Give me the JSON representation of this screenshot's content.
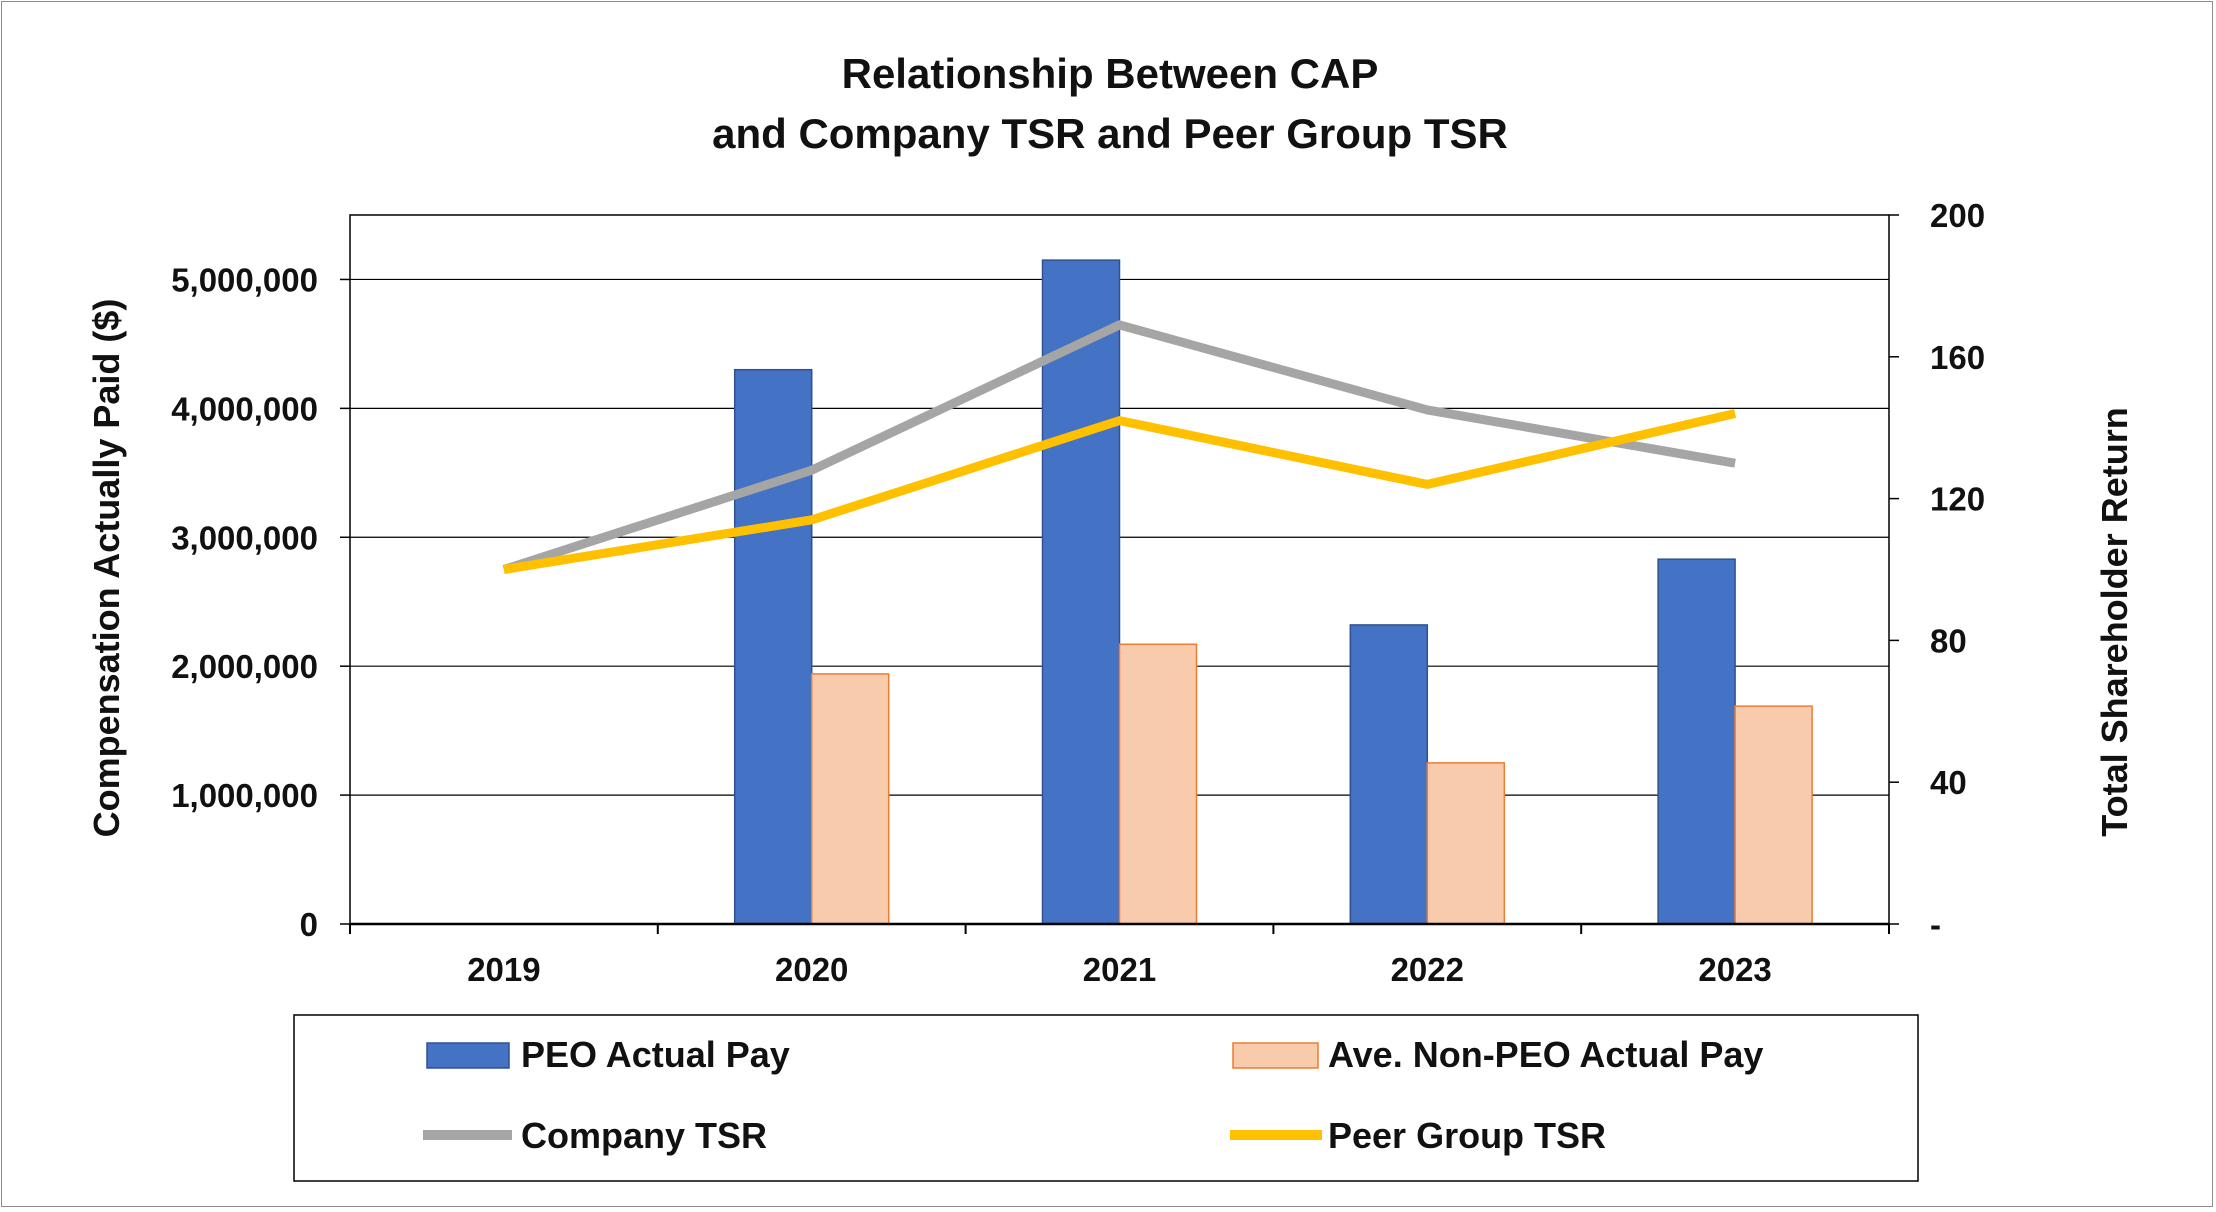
{
  "chart_data": {
    "type": "bar",
    "title": [
      "Relationship Between CAP",
      "and Company TSR and Peer Group TSR"
    ],
    "categories": [
      "2019",
      "2020",
      "2021",
      "2022",
      "2023"
    ],
    "bar_series": [
      {
        "name": "PEO Actual Pay",
        "values": [
          0,
          4300000,
          5150000,
          2320000,
          2830000
        ],
        "color": "#4472C4",
        "stroke": "#2F528F"
      },
      {
        "name": "Ave. Non-PEO Actual Pay",
        "values": [
          0,
          1940000,
          2170000,
          1250000,
          1690000
        ],
        "color": "#F8CBAD",
        "stroke": "#ED7D31"
      }
    ],
    "line_series": [
      {
        "name": "Company TSR",
        "values": [
          100,
          128,
          169,
          145,
          130
        ],
        "color": "#A5A5A5"
      },
      {
        "name": "Peer Group TSR",
        "values": [
          100,
          114,
          142,
          124,
          144
        ],
        "color": "#FFC000"
      }
    ],
    "ylabel": "Compensation Actually Paid ($)",
    "ylabel_right": "Total Shareholder Return",
    "ylim": [
      0,
      5500000
    ],
    "yticks": [
      0,
      1000000,
      2000000,
      3000000,
      4000000,
      5000000
    ],
    "ytick_labels": [
      "0",
      "1,000,000",
      "2,000,000",
      "3,000,000",
      "4,000,000",
      "5,000,000"
    ],
    "ylim_right": [
      0,
      200
    ],
    "yticks_right": [
      0,
      40,
      80,
      120,
      160,
      200
    ],
    "ytick_labels_right": [
      "-",
      "40",
      "80",
      "120",
      "160",
      "200"
    ],
    "grid": true,
    "legend_position": "bottom",
    "legend": [
      "PEO Actual Pay",
      "Ave. Non-PEO Actual Pay",
      "Company TSR",
      "Peer Group TSR"
    ]
  }
}
